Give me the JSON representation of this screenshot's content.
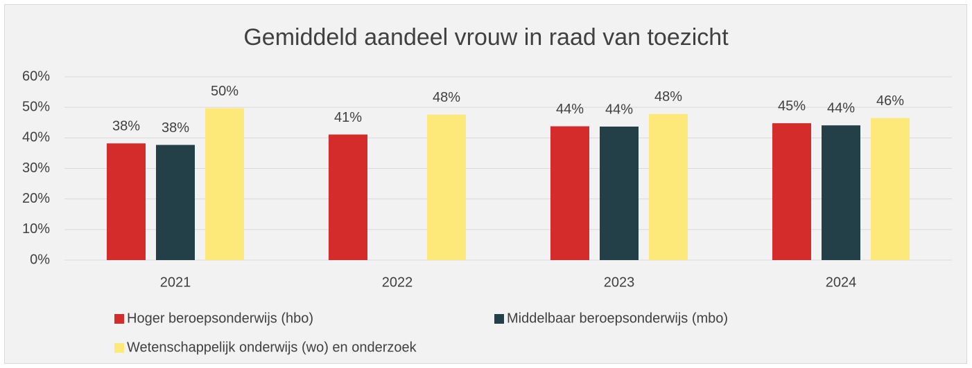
{
  "chart_data": {
    "type": "bar",
    "title": "Gemiddeld aandeel vrouw in raad van toezicht",
    "categories": [
      "2021",
      "2022",
      "2023",
      "2024"
    ],
    "series": [
      {
        "name": "Hoger beroepsonderwijs (hbo)",
        "color": "#d42b2b",
        "values": [
          38.2,
          41.1,
          43.8,
          44.8
        ],
        "value_labels": [
          "38%",
          "41%",
          "44%",
          "45%"
        ]
      },
      {
        "name": "Middelbaar beroepsonderwijs (mbo)",
        "color": "#233f47",
        "values": [
          37.7,
          null,
          43.7,
          44.1
        ],
        "value_labels": [
          "38%",
          null,
          "44%",
          "44%"
        ]
      },
      {
        "name": "Wetenschappelijk onderwijs (wo) en onderzoek",
        "color": "#fde97a",
        "values": [
          49.7,
          47.6,
          47.8,
          46.5
        ],
        "value_labels": [
          "50%",
          "48%",
          "48%",
          "46%"
        ]
      }
    ],
    "ylim": [
      0,
      60
    ],
    "yticks": [
      {
        "value": 0,
        "label": "0%"
      },
      {
        "value": 10,
        "label": "10%"
      },
      {
        "value": 20,
        "label": "20%"
      },
      {
        "value": 30,
        "label": "30%"
      },
      {
        "value": 40,
        "label": "40%"
      },
      {
        "value": 50,
        "label": "50%"
      },
      {
        "value": 60,
        "label": "60%"
      }
    ],
    "grid": true,
    "legend": "bottom"
  }
}
